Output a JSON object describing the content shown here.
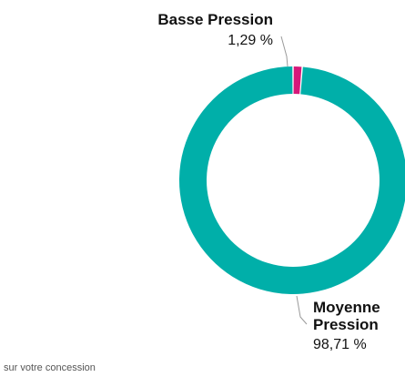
{
  "chart_data": {
    "type": "pie",
    "donut": true,
    "categories": [
      "Basse Pression",
      "Moyenne Pression"
    ],
    "values": [
      1.29,
      98.71
    ],
    "value_labels": [
      "1,29 %",
      "98,71 %"
    ],
    "unit": "%",
    "colors": {
      "Basse Pression": "#D6197A",
      "Moyenne Pression": "#00AFA9"
    },
    "legend": "none",
    "grid": false
  },
  "labels": {
    "basse_name": "Basse Pression",
    "basse_pct": "1,29 %",
    "moyenne_name_line1": "Moyenne",
    "moyenne_name_line2": "Pression",
    "moyenne_pct": "98,71 %"
  },
  "footer": {
    "note": "sur votre concession"
  }
}
